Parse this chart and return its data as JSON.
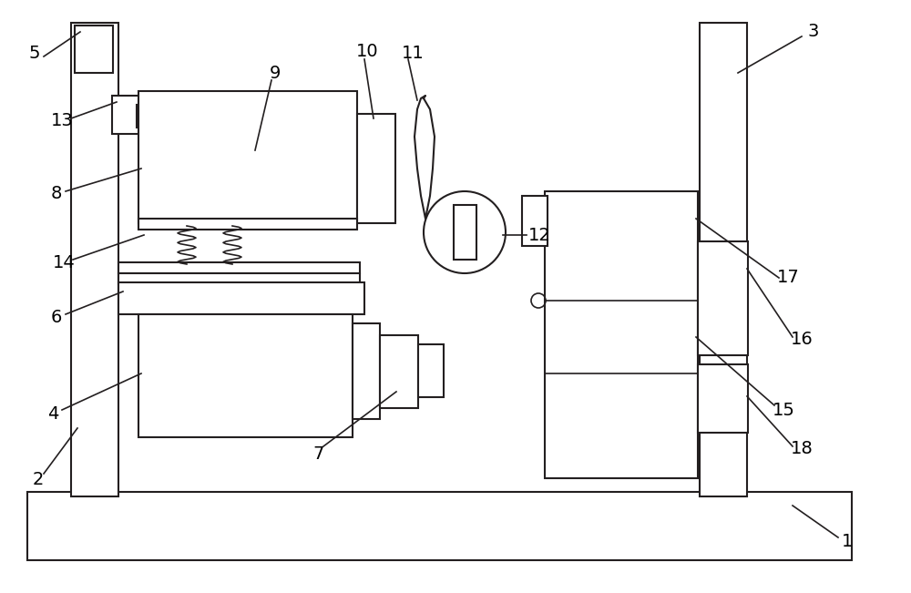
{
  "background_color": "#ffffff",
  "line_color": "#231f20",
  "line_width": 1.5,
  "fig_width": 10.0,
  "fig_height": 6.51,
  "dpi": 100
}
